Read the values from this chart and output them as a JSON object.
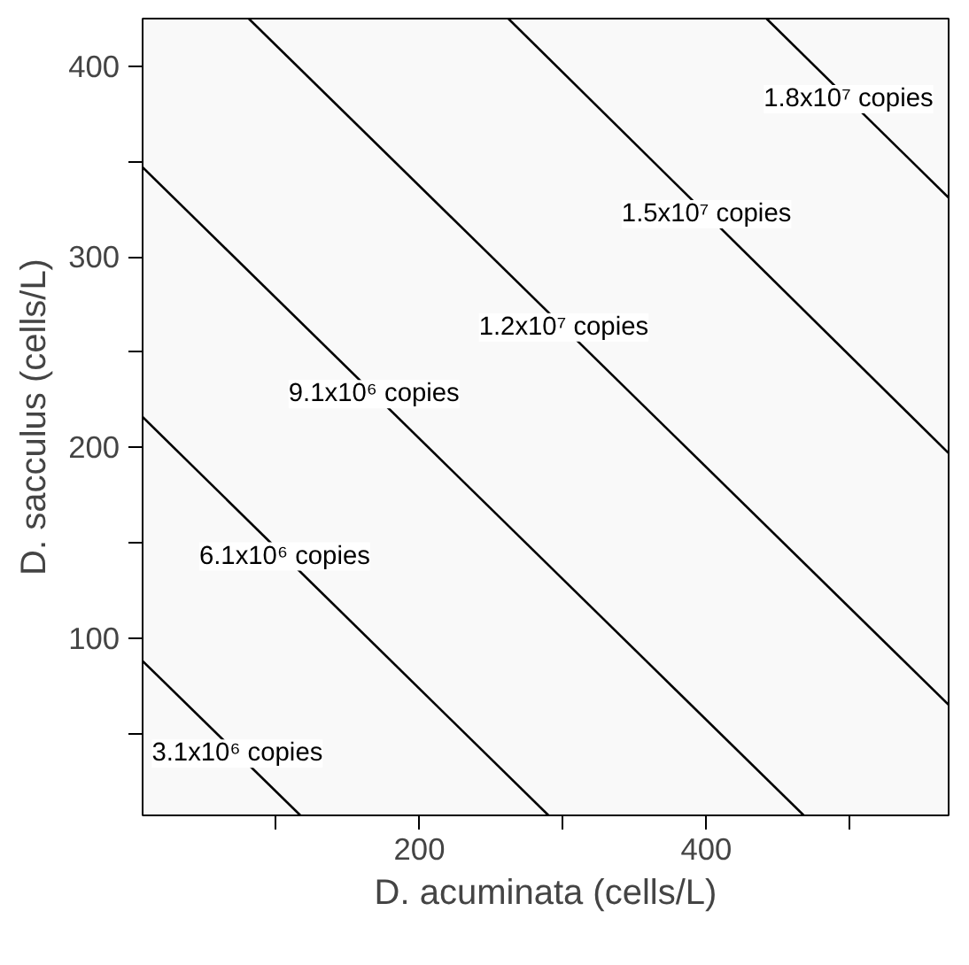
{
  "chart_data": {
    "type": "line",
    "xlabel": "D. acuminata (cells/L)",
    "ylabel": "D. sacculus (cells/L)",
    "xlim": [
      7,
      569
    ],
    "ylim": [
      7,
      425
    ],
    "xticks": [
      {
        "value": 100,
        "label": null
      },
      200,
      {
        "value": 300,
        "label": null
      },
      400,
      {
        "value": 500,
        "label": null
      }
    ],
    "yticks": [
      {
        "value": 50,
        "label": null
      },
      100,
      {
        "value": 150,
        "label": null
      },
      200,
      {
        "value": 250,
        "label": null
      },
      300,
      {
        "value": 350,
        "label": null
      },
      400
    ],
    "grid": false,
    "marker": "none",
    "line_style": "solid",
    "series": [
      {
        "name": "3.1x10⁶ copies",
        "color": "#000000",
        "x": [
          7,
          117
        ],
        "values": [
          88,
          7
        ]
      },
      {
        "name": "6.1x10⁶ copies",
        "color": "#000000",
        "x": [
          7,
          290
        ],
        "values": [
          216,
          7
        ]
      },
      {
        "name": "9.1x10⁶ copies",
        "color": "#000000",
        "x": [
          7,
          468
        ],
        "values": [
          347,
          7
        ]
      },
      {
        "name": "1.2x10⁷ copies",
        "color": "#000000",
        "x": [
          81,
          569
        ],
        "values": [
          425,
          65
        ]
      },
      {
        "name": "1.5x10⁷ copies",
        "color": "#000000",
        "x": [
          262,
          569
        ],
        "values": [
          425,
          197
        ]
      },
      {
        "name": "1.8x10⁷ copies",
        "color": "#000000",
        "x": [
          442,
          569
        ],
        "values": [
          425,
          331
        ]
      }
    ]
  }
}
